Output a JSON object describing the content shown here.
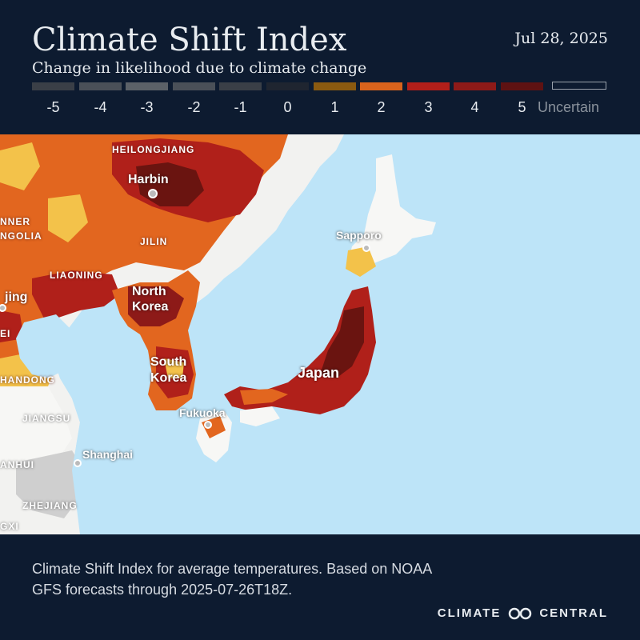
{
  "header": {
    "title": "Climate Shift Index",
    "date": "Jul 28, 2025",
    "subtitle": "Change in likelihood due to climate change"
  },
  "legend": {
    "items": [
      {
        "label": "-5",
        "color": "#3a3f47"
      },
      {
        "label": "-4",
        "color": "#4a5058"
      },
      {
        "label": "-3",
        "color": "#5b6168"
      },
      {
        "label": "-2",
        "color": "#4a5058"
      },
      {
        "label": "-1",
        "color": "#3a3f47"
      },
      {
        "label": "0",
        "color": "#1f2530"
      },
      {
        "label": "1",
        "color": "#8a5a10"
      },
      {
        "label": "2",
        "color": "#d8631c"
      },
      {
        "label": "3",
        "color": "#b21f1a"
      },
      {
        "label": "4",
        "color": "#8d1a18"
      },
      {
        "label": "5",
        "color": "#5e1212"
      }
    ],
    "uncertain_label": "Uncertain"
  },
  "map": {
    "labels": {
      "heilongjiang": "HEILONGJIANG",
      "harbin": "Harbin",
      "inner": "NNER",
      "mongolia": "NGOLIA",
      "jilin": "JILIN",
      "liaoning": "LIAONING",
      "north_korea_1": "North",
      "north_korea_2": "Korea",
      "beijing": "jing",
      "hebei": "EI",
      "south_korea_1": "South",
      "south_korea_2": "Korea",
      "shandong": "HANDONG",
      "japan": "Japan",
      "sapporo": "Sapporo",
      "fukuoka": "Fukuoka",
      "jiangsu": "JIANGSU",
      "shanghai": "Shanghai",
      "anhui": "ANHUI",
      "zhejiang": "ZHEJIANG",
      "jiangxi": "GXI"
    }
  },
  "footer": {
    "caption": "Climate Shift Index for average temperatures. Based on NOAA GFS forecasts through 2025-07-26T18Z.",
    "brand_left": "CLIMATE",
    "brand_right": "CENTRAL"
  }
}
